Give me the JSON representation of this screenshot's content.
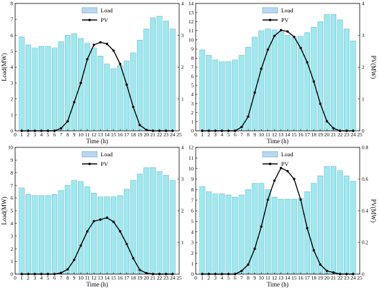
{
  "colors": {
    "bar_fill": "#9fe9ee",
    "bar_stroke": "#5fb0c8",
    "pv_line": "#000000",
    "legend_load_fill": "#bcd6f0"
  },
  "legend": {
    "load": "Load",
    "pv": "PV"
  },
  "chart_data": [
    {
      "type": "bar",
      "xlabel": "Time (h)",
      "ylabel": "Load(MW)",
      "ylabel_right": "",
      "xlim": [
        0,
        25
      ],
      "xticks": [
        0,
        1,
        2,
        3,
        4,
        5,
        6,
        7,
        8,
        9,
        10,
        11,
        12,
        13,
        14,
        15,
        16,
        17,
        18,
        19,
        20,
        21,
        22,
        23,
        24,
        25
      ],
      "ylim": [
        0,
        8
      ],
      "yticks": [
        0,
        1,
        2,
        3,
        4,
        5,
        6,
        7,
        8
      ],
      "ylim_right": [
        0,
        4
      ],
      "yticks_right": [
        1,
        2,
        3,
        4
      ],
      "legend_position": "top-center",
      "x": [
        1,
        2,
        3,
        4,
        5,
        6,
        7,
        8,
        9,
        10,
        11,
        12,
        13,
        14,
        15,
        16,
        17,
        18,
        19,
        20,
        21,
        22,
        23,
        24
      ],
      "series": [
        {
          "name": "Load",
          "type": "bar",
          "axis": "left",
          "values": [
            5.9,
            5.4,
            5.2,
            5.3,
            5.3,
            5.2,
            5.6,
            6.0,
            6.1,
            5.8,
            5.5,
            5.2,
            4.7,
            4.2,
            3.9,
            4.1,
            4.4,
            4.9,
            5.7,
            6.4,
            7.1,
            7.2,
            6.9,
            6.4
          ]
        },
        {
          "name": "PV",
          "type": "line",
          "axis": "right",
          "values": [
            0,
            0,
            0,
            0,
            0,
            0,
            0.08,
            0.3,
            0.9,
            1.5,
            2.25,
            2.7,
            2.78,
            2.73,
            2.52,
            2.1,
            1.45,
            0.75,
            0.18,
            0.03,
            0,
            0,
            0,
            0
          ]
        }
      ]
    },
    {
      "type": "bar",
      "xlabel": "Time (h)",
      "ylabel": "",
      "ylabel_right": "PV(MW)",
      "xlim": [
        0,
        25
      ],
      "xticks": [
        0,
        1,
        2,
        3,
        4,
        5,
        6,
        7,
        8,
        9,
        10,
        11,
        12,
        13,
        14,
        15,
        16,
        17,
        18,
        19,
        20,
        21,
        22,
        23,
        24,
        25
      ],
      "ylim": [
        0,
        14
      ],
      "yticks": [
        0,
        1,
        2,
        3,
        4,
        5,
        6,
        7,
        8,
        9,
        10,
        11,
        12,
        13,
        14
      ],
      "ylim_right": [
        0,
        4
      ],
      "yticks_right": [
        0,
        1,
        2,
        3,
        4
      ],
      "legend_position": "top-center",
      "x": [
        1,
        2,
        3,
        4,
        5,
        6,
        7,
        8,
        9,
        10,
        11,
        12,
        13,
        14,
        15,
        16,
        17,
        18,
        19,
        20,
        21,
        22,
        23,
        24
      ],
      "series": [
        {
          "name": "Load",
          "type": "bar",
          "axis": "left",
          "values": [
            8.9,
            8.3,
            7.8,
            7.6,
            7.6,
            7.8,
            8.3,
            9.2,
            10.3,
            11.0,
            11.2,
            11.1,
            10.9,
            10.5,
            10.3,
            10.4,
            10.8,
            11.4,
            12.0,
            12.8,
            12.8,
            12.2,
            11.2,
            9.9
          ]
        },
        {
          "name": "PV",
          "type": "line",
          "axis": "right",
          "values": [
            0,
            0,
            0,
            0,
            0,
            0,
            0.12,
            0.45,
            1.2,
            1.95,
            2.55,
            2.98,
            3.16,
            3.12,
            2.95,
            2.6,
            2.15,
            1.55,
            0.85,
            0.3,
            0.08,
            0,
            0,
            0
          ]
        }
      ]
    },
    {
      "type": "bar",
      "xlabel": "Time (h)",
      "ylabel": "Load(MW)",
      "ylabel_right": "",
      "xlim": [
        0,
        25
      ],
      "xticks": [
        0,
        1,
        2,
        3,
        4,
        5,
        6,
        7,
        8,
        9,
        10,
        11,
        12,
        13,
        14,
        15,
        16,
        17,
        18,
        19,
        20,
        21,
        22,
        23,
        24,
        25
      ],
      "ylim": [
        0,
        10
      ],
      "yticks": [
        0,
        1,
        2,
        3,
        4,
        5,
        6,
        7,
        8,
        9,
        10
      ],
      "ylim_right": [
        0,
        4
      ],
      "yticks_right": [
        1,
        2,
        3,
        4
      ],
      "legend_position": "top-center",
      "x": [
        1,
        2,
        3,
        4,
        5,
        6,
        7,
        8,
        9,
        10,
        11,
        12,
        13,
        14,
        15,
        16,
        17,
        18,
        19,
        20,
        21,
        22,
        23,
        24
      ],
      "series": [
        {
          "name": "Load",
          "type": "bar",
          "axis": "left",
          "values": [
            6.8,
            6.3,
            6.2,
            6.2,
            6.2,
            6.3,
            6.6,
            7.0,
            7.4,
            7.3,
            6.9,
            6.4,
            6.1,
            6.1,
            6.1,
            6.2,
            6.7,
            7.4,
            7.9,
            8.4,
            8.4,
            8.1,
            7.8,
            7.4
          ]
        },
        {
          "name": "PV",
          "type": "line",
          "axis": "right",
          "values": [
            0,
            0,
            0,
            0,
            0,
            0,
            0.04,
            0.15,
            0.45,
            0.9,
            1.35,
            1.67,
            1.72,
            1.78,
            1.65,
            1.35,
            0.95,
            0.5,
            0.13,
            0.03,
            0,
            0,
            0,
            0
          ]
        }
      ]
    },
    {
      "type": "bar",
      "xlabel": "Time (h)",
      "ylabel": "",
      "ylabel_right": "PV(MW)",
      "xlim": [
        0,
        25
      ],
      "xticks": [
        0,
        1,
        2,
        3,
        4,
        5,
        6,
        7,
        8,
        9,
        10,
        11,
        12,
        13,
        14,
        15,
        16,
        17,
        18,
        19,
        20,
        21,
        22,
        23,
        24,
        25
      ],
      "ylim": [
        0,
        12
      ],
      "yticks": [
        0,
        1,
        2,
        3,
        4,
        5,
        6,
        7,
        8,
        9,
        10,
        11,
        12
      ],
      "ylim_right": [
        0,
        0.8
      ],
      "yticks_right": [
        0,
        0.2,
        0.4,
        0.6,
        0.8
      ],
      "legend_position": "top-center",
      "x": [
        1,
        2,
        3,
        4,
        5,
        6,
        7,
        8,
        9,
        10,
        11,
        12,
        13,
        14,
        15,
        16,
        17,
        18,
        19,
        20,
        21,
        22,
        23,
        24
      ],
      "series": [
        {
          "name": "Load",
          "type": "bar",
          "axis": "left",
          "values": [
            8.3,
            7.8,
            7.6,
            7.6,
            7.5,
            7.3,
            7.5,
            8.0,
            8.6,
            8.6,
            8.0,
            7.3,
            7.1,
            7.1,
            7.1,
            7.2,
            7.8,
            8.6,
            9.3,
            10.2,
            10.2,
            9.8,
            9.3,
            8.8
          ]
        },
        {
          "name": "PV",
          "type": "line",
          "axis": "right",
          "values": [
            0,
            0,
            0,
            0,
            0,
            0,
            0.02,
            0.06,
            0.16,
            0.3,
            0.47,
            0.59,
            0.67,
            0.65,
            0.6,
            0.47,
            0.29,
            0.15,
            0.06,
            0.02,
            0.01,
            0,
            0,
            0
          ]
        }
      ]
    }
  ]
}
